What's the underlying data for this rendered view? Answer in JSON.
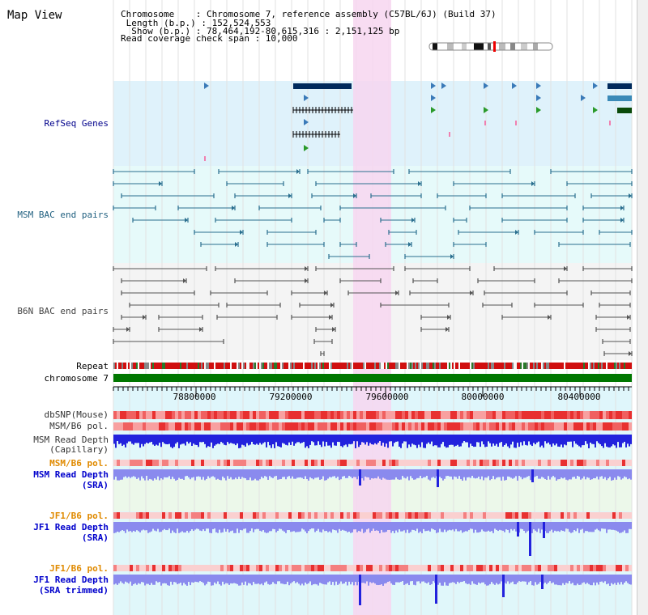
{
  "header": {
    "title": "Map View"
  },
  "info": {
    "line1": "Chromosome    : Chromosome 7, reference assembly (C57BL/6J) (Build 37)",
    "line2": " Length (b.p.) : 152,524,553",
    "line3": "  Show (b.p.) : 78,464,192-80,615,316 : 2,151,125 bp",
    "line4": "Read coverage check span : 10,000"
  },
  "tracks": {
    "refseq": "RefSeq Genes",
    "msm_bac": "MSM BAC end pairs",
    "b6n_bac": "B6N BAC end pairs",
    "repeat": "Repeat",
    "chromosome": "chromosome 7",
    "dbsnp": "dbSNP(Mouse)",
    "msm_b6_pol": "MSM/B6 pol.",
    "msm_depth_cap_1": "MSM Read Depth",
    "msm_depth_cap_2": "(Capillary)",
    "msm_b6_pol_2": "MSM/B6 pol.",
    "msm_depth_sra_1": "MSM Read Depth",
    "msm_depth_sra_2": "(SRA)",
    "jf1_b6_pol": "JF1/B6 pol.",
    "jf1_depth_sra_1": "JF1 Read Depth",
    "jf1_depth_sra_2": "(SRA)",
    "jf1_b6_pol_2": "JF1/B6 pol.",
    "jf1_depth_trim_1": "JF1 Read Depth",
    "jf1_depth_trim_2": "(SRA trimmed)"
  },
  "axis": {
    "ticks": [
      "78800000",
      "79200000",
      "79600000",
      "80000000",
      "80400000"
    ]
  },
  "colors": {
    "refseq_bg": "#dff2fb",
    "msm_bg": "#e6fafa",
    "b6n_bg": "#f4f4f4",
    "highlight": "#f7d6f0",
    "chromosome": "#007700",
    "depth_blue": "#2222dd",
    "depth_light": "#8a8aee"
  }
}
